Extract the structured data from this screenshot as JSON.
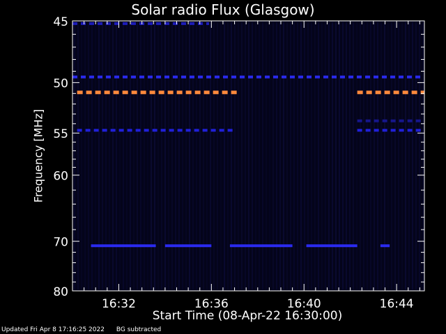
{
  "chart_data": {
    "type": "heatmap",
    "title": "Solar radio Flux (Glasgow)",
    "xlabel": "Start Time (08-Apr-22 16:30:00)",
    "ylabel": "Frequency [MHz]",
    "xlim_minutes": [
      0,
      15.2
    ],
    "ylim_mhz": [
      45,
      80
    ],
    "y_scale": "reciprocal",
    "x_ticks": [
      {
        "min": 2,
        "label": "16:32"
      },
      {
        "min": 6,
        "label": "16:36"
      },
      {
        "min": 10,
        "label": "16:40"
      },
      {
        "min": 14,
        "label": "16:44"
      }
    ],
    "y_ticks": [
      {
        "mhz": 45,
        "label": "45"
      },
      {
        "mhz": 50,
        "label": "50"
      },
      {
        "mhz": 55,
        "label": "55"
      },
      {
        "mhz": 60,
        "label": "60"
      },
      {
        "mhz": 70,
        "label": "70"
      },
      {
        "mhz": 80,
        "label": "80"
      }
    ],
    "bands": [
      {
        "mhz": 45.2,
        "color": "#1c1cb8",
        "segments": [
          [
            0,
            5.9
          ]
        ]
      },
      {
        "mhz": 49.5,
        "color": "#2a2aee",
        "segments": [
          [
            0,
            15.2
          ]
        ]
      },
      {
        "mhz": 50.9,
        "color": "#ff8a3c",
        "segments": [
          [
            0.2,
            7.1
          ],
          [
            12.3,
            15.2
          ]
        ]
      },
      {
        "mhz": 54.7,
        "color": "#2020d8",
        "segments": [
          [
            0.2,
            7.0
          ],
          [
            12.3,
            15.2
          ]
        ]
      },
      {
        "mhz": 53.7,
        "color": "#16168c",
        "segments": [
          [
            12.3,
            15.2
          ]
        ]
      },
      {
        "mhz": 70.8,
        "color": "#2a2aee",
        "segments": [
          [
            0.8,
            3.6
          ],
          [
            4.0,
            6.0
          ],
          [
            6.8,
            9.5
          ],
          [
            10.1,
            12.3
          ],
          [
            13.3,
            13.7
          ]
        ]
      }
    ],
    "grid": false,
    "legend": "none"
  },
  "footer": {
    "updated": "Updated Fri Apr  8 17:16:25 2022",
    "note": "BG subtracted"
  },
  "colors": {
    "background": "#000000",
    "plot_background": "#04041a",
    "axis": "#ffffff"
  }
}
